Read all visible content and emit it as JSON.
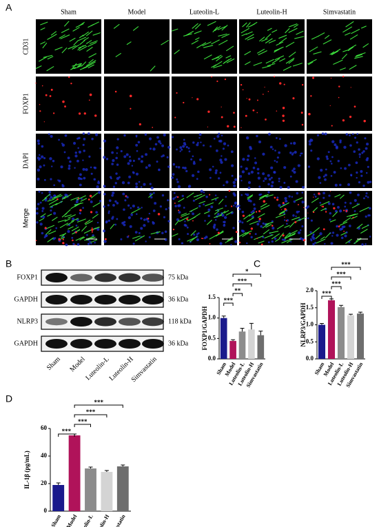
{
  "panel_labels": [
    "A",
    "B",
    "C",
    "D"
  ],
  "figure_a": {
    "columns": [
      "Sham",
      "Model",
      "Luteolin-L",
      "Luteolin-H",
      "Simvastatin"
    ],
    "rows": [
      "CD31",
      "FOXP1",
      "DAPI",
      "Merge"
    ],
    "scale_bar": "200 μm"
  },
  "figure_b": {
    "lanes": [
      "Sham",
      "Model",
      "Luteolin-L",
      "Luteolin-H",
      "Simvastatin"
    ],
    "bands": [
      {
        "protein": "FOXP1",
        "size": "75 kDa"
      },
      {
        "protein": "GAPDH",
        "size": "36 kDa"
      },
      {
        "protein": "NLRP3",
        "size": "118 kDa"
      },
      {
        "protein": "GAPDH",
        "size": "36 kDa"
      }
    ]
  },
  "chart_data": [
    {
      "type": "bar",
      "ylabel": "FOXP1/GAPDH",
      "categories": [
        "Sham",
        "Model",
        "Luteolin-L",
        "Luteolin-H",
        "Simvastatin"
      ],
      "values": [
        1.0,
        0.44,
        0.67,
        0.72,
        0.58
      ],
      "errors": [
        0.05,
        0.03,
        0.08,
        0.15,
        0.1
      ],
      "colors": [
        "#1a1a8c",
        "#b0135a",
        "#8c8c8c",
        "#d4d4d4",
        "#6e6e6e"
      ],
      "ylim": [
        0,
        1.5
      ],
      "yticks": [
        {
          "value": 0,
          "label": "0.0"
        },
        {
          "value": 0.5,
          "label": "0.5"
        },
        {
          "value": 1,
          "label": "1.0"
        },
        {
          "value": 1.5,
          "label": "1.5"
        }
      ],
      "comparisons": [
        {
          "groups": [
            0,
            1
          ],
          "label": "***"
        },
        {
          "groups": [
            1,
            2
          ],
          "label": "**"
        },
        {
          "groups": [
            1,
            3
          ],
          "label": "***"
        },
        {
          "groups": [
            1,
            4
          ],
          "label": "*"
        }
      ]
    },
    {
      "type": "bar",
      "ylabel": "NLRP3/GAPDH",
      "categories": [
        "Sham",
        "Model",
        "Luteolin-L",
        "Luteolin-H",
        "Simvastatin"
      ],
      "values": [
        1.0,
        1.72,
        1.52,
        1.28,
        1.33
      ],
      "errors": [
        0.04,
        0.04,
        0.05,
        0.03,
        0.04
      ],
      "colors": [
        "#1a1a8c",
        "#b0135a",
        "#8c8c8c",
        "#d4d4d4",
        "#6e6e6e"
      ],
      "ylim": [
        0,
        2
      ],
      "yticks": [
        {
          "value": 0,
          "label": "0.0"
        },
        {
          "value": 0.5,
          "label": "0.5"
        },
        {
          "value": 1,
          "label": "1.0"
        },
        {
          "value": 1.5,
          "label": "1.5"
        },
        {
          "value": 2,
          "label": "2.0"
        }
      ],
      "comparisons": [
        {
          "groups": [
            0,
            1
          ],
          "label": "***"
        },
        {
          "groups": [
            1,
            2
          ],
          "label": "***"
        },
        {
          "groups": [
            1,
            3
          ],
          "label": "***"
        },
        {
          "groups": [
            1,
            4
          ],
          "label": "***"
        }
      ]
    },
    {
      "type": "bar",
      "ylabel": "IL-1β (pg/mL)",
      "categories": [
        "Sham",
        "Model",
        "Luteolin-L",
        "Luteolin-H",
        "Simvastatin"
      ],
      "values": [
        19,
        55,
        31,
        28.5,
        32.5
      ],
      "errors": [
        1.5,
        1,
        1,
        1,
        1
      ],
      "colors": [
        "#1a1a8c",
        "#b0135a",
        "#8c8c8c",
        "#d4d4d4",
        "#6e6e6e"
      ],
      "ylim": [
        0,
        60
      ],
      "yticks": [
        0,
        20,
        40,
        60
      ],
      "comparisons": [
        {
          "groups": [
            0,
            1
          ],
          "label": "***"
        },
        {
          "groups": [
            1,
            2
          ],
          "label": "***"
        },
        {
          "groups": [
            1,
            3
          ],
          "label": "***"
        },
        {
          "groups": [
            1,
            4
          ],
          "label": "***"
        }
      ]
    }
  ]
}
